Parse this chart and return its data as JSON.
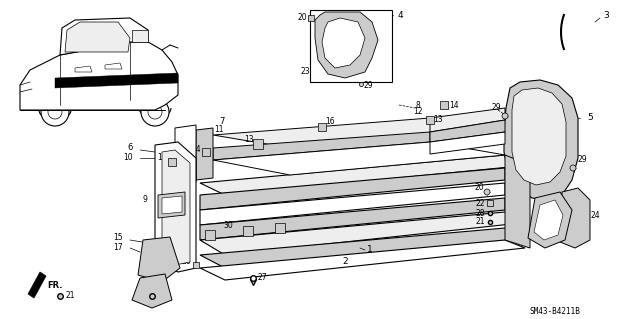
{
  "diagram_code": "SM43-B4211B",
  "background_color": "#ffffff",
  "line_color": "#000000",
  "gray_fill": "#cccccc",
  "dark_fill": "#888888",
  "light_fill": "#eeeeee"
}
